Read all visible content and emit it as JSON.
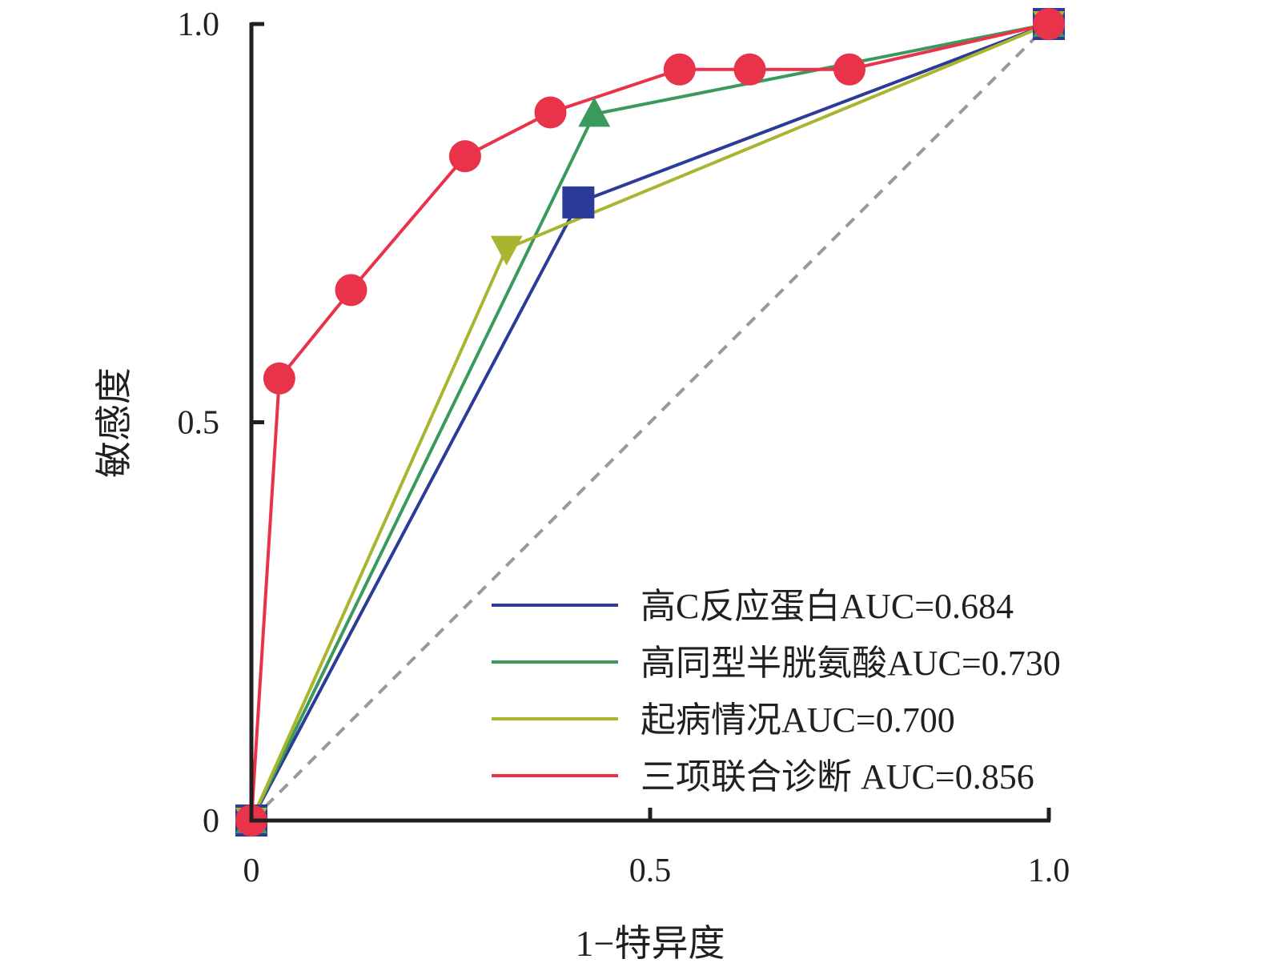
{
  "chart_data": {
    "type": "line",
    "xlabel": "1−特异度",
    "ylabel": "敏感度",
    "xlim": [
      0,
      1
    ],
    "ylim": [
      0,
      1
    ],
    "x_ticks": [
      {
        "value": 0,
        "label": "0"
      },
      {
        "value": 0.5,
        "label": "0.5"
      },
      {
        "value": 1,
        "label": "1.0"
      }
    ],
    "y_ticks": [
      {
        "value": 0,
        "label": "0"
      },
      {
        "value": 0.5,
        "label": "0.5"
      },
      {
        "value": 1,
        "label": "1.0"
      }
    ],
    "grid": false,
    "legend_position": "bottom-right",
    "reference_line": {
      "x": [
        0,
        1
      ],
      "y": [
        0,
        1
      ],
      "color": "#999999",
      "style": "dashed"
    },
    "series": [
      {
        "name": "高C反应蛋白AUC=0.684",
        "color": "#2b3b97",
        "marker": "square",
        "points": [
          [
            0,
            0
          ],
          [
            0.41,
            0.776
          ],
          [
            1.0,
            1.0
          ]
        ]
      },
      {
        "name": "高同型半胱氨酸AUC=0.730",
        "color": "#3a9a5c",
        "marker": "triangle-up",
        "points": [
          [
            0,
            0
          ],
          [
            0.43,
            0.887
          ],
          [
            1.0,
            1.0
          ]
        ]
      },
      {
        "name": "起病情况AUC=0.700",
        "color": "#a9b52e",
        "marker": "triangle-down",
        "points": [
          [
            0,
            0
          ],
          [
            0.32,
            0.718
          ],
          [
            1.0,
            1.0
          ]
        ]
      },
      {
        "name": "三项联合诊断 AUC=0.856",
        "color": "#e8334a",
        "marker": "circle",
        "points": [
          [
            0,
            0
          ],
          [
            0.035,
            0.555
          ],
          [
            0.125,
            0.666
          ],
          [
            0.268,
            0.834
          ],
          [
            0.375,
            0.889
          ],
          [
            0.537,
            0.943
          ],
          [
            0.625,
            0.943
          ],
          [
            0.75,
            0.943
          ],
          [
            1.0,
            1.0
          ]
        ]
      }
    ]
  }
}
